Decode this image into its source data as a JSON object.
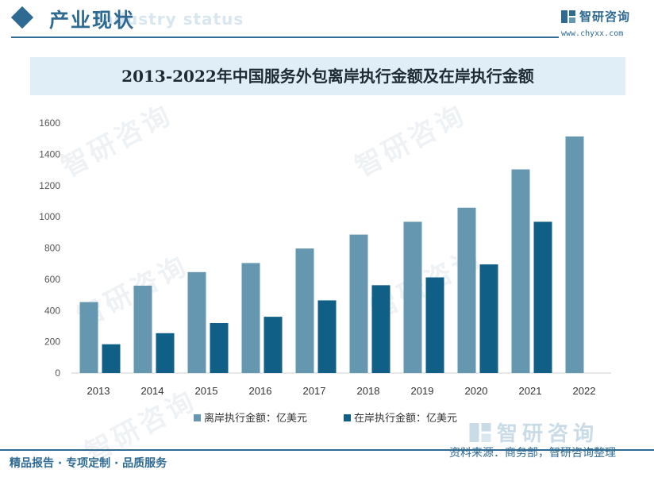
{
  "header": {
    "title": "产业现状",
    "ghost_text": "Industry status",
    "brand_name": "智研咨询",
    "brand_url": "www.chyxx.com"
  },
  "watermark": {
    "text": "智研咨询"
  },
  "footer": {
    "left": "精品报告 · 专项定制 · 品质服务",
    "source": "资料来源：商务部，智研咨询整理",
    "brand_name": "智研咨询"
  },
  "colors": {
    "accent": "#2f6a93",
    "offshore": "#6598b0",
    "onshore": "#0f5f86"
  },
  "chart_data": {
    "type": "bar",
    "title": "2013-2022年中国服务外包离岸执行金额及在岸执行金额",
    "categories": [
      "2013",
      "2014",
      "2015",
      "2016",
      "2017",
      "2018",
      "2019",
      "2020",
      "2021",
      "2022"
    ],
    "series": [
      {
        "name": "离岸执行金额：亿美元",
        "values": [
          454,
          559,
          646,
          704,
          797,
          886,
          968,
          1058,
          1303,
          1514
        ]
      },
      {
        "name": "在岸执行金额：亿美元",
        "values": [
          184,
          255,
          320,
          360,
          465,
          562,
          612,
          695,
          968,
          null
        ]
      }
    ],
    "ylim": [
      0,
      1600
    ],
    "yticks": [
      "0",
      "200",
      "400",
      "600",
      "800",
      "1000",
      "1200",
      "1400",
      "1600"
    ],
    "grid": false,
    "legend": "bottom"
  }
}
